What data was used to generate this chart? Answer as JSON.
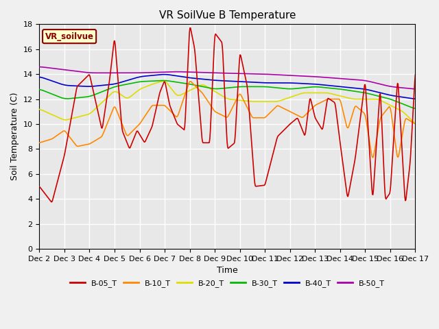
{
  "title": "VR SoilVue B Temperature",
  "xlabel": "Time",
  "ylabel": "Soil Temperature (C)",
  "ylim": [
    0,
    18
  ],
  "yticks": [
    0,
    2,
    4,
    6,
    8,
    10,
    12,
    14,
    16,
    18
  ],
  "x_labels": [
    "Dec 2",
    "Dec 3",
    "Dec 4",
    "Dec 5",
    "Dec 6",
    "Dec 7",
    "Dec 8",
    "Dec 9",
    "Dec 10",
    "Dec 11",
    "Dec 12",
    "Dec 13",
    "Dec 14",
    "Dec 15",
    "Dec 16",
    "Dec 17"
  ],
  "legend_label": "VR_soilvue",
  "series_colors": {
    "B-05_T": "#cc0000",
    "B-10_T": "#ff8800",
    "B-20_T": "#dddd00",
    "B-30_T": "#00bb00",
    "B-40_T": "#0000cc",
    "B-50_T": "#aa00aa"
  },
  "background_color": "#f0f0f0",
  "plot_bg_color": "#e8e8e8",
  "grid_color": "#ffffff",
  "figsize": [
    6.4,
    4.8
  ],
  "dpi": 100
}
